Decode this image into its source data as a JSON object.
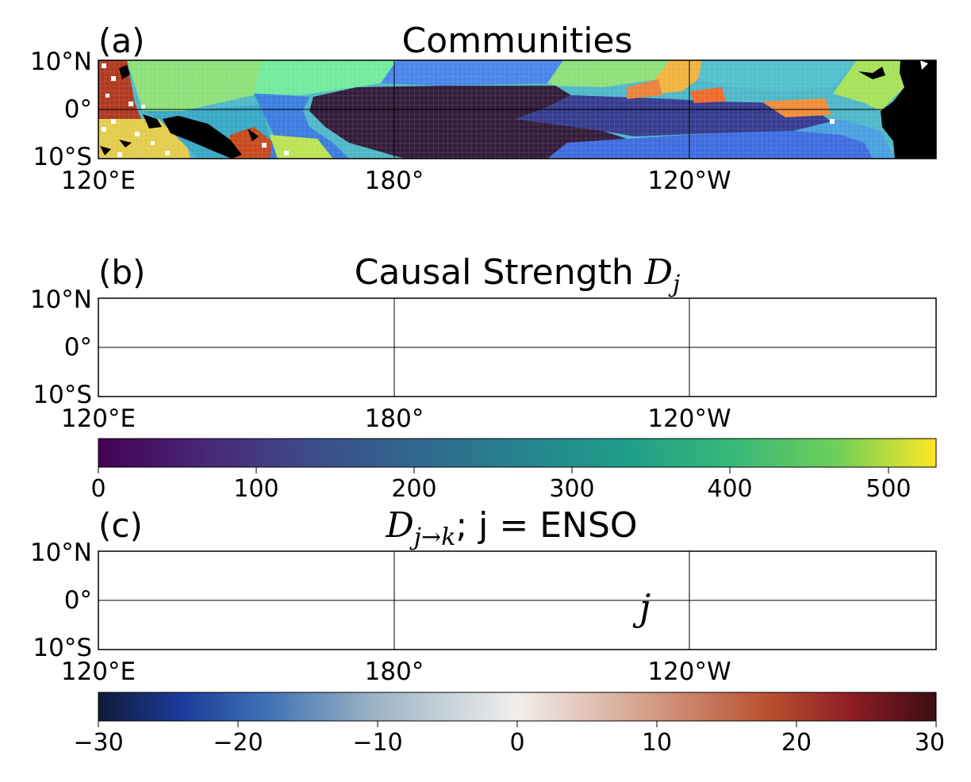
{
  "panels": [
    {
      "label": "(a)",
      "title": "Communities",
      "lat_ticks": [
        "10°N",
        "0°",
        "10°S"
      ],
      "lon_ticks": [
        "120°E",
        "180°",
        "120°W"
      ]
    },
    {
      "label": "(b)",
      "title_prefix": "Causal Strength ",
      "title_math": "D",
      "title_sub": "j",
      "lat_ticks": [
        "10°N",
        "0°",
        "10°S"
      ],
      "lon_ticks": [
        "120°E",
        "180°",
        "120°W"
      ],
      "colorbar": {
        "colormap": "viridis",
        "range": [
          0,
          530
        ],
        "ticks": [
          "0",
          "100",
          "200",
          "300",
          "400",
          "500"
        ]
      }
    },
    {
      "label": "(c)",
      "title_math": "D",
      "title_sub": "j→k",
      "title_suffix": "; j = ENSO",
      "lat_ticks": [
        "10°N",
        "0°",
        "10°S"
      ],
      "lon_ticks": [
        "120°E",
        "180°",
        "120°W"
      ],
      "annotation": "j",
      "colorbar": {
        "colormap": "diverging blue-white-red",
        "range": [
          -30,
          30
        ],
        "ticks": [
          "−30",
          "−20",
          "−10",
          "0",
          "10",
          "20",
          "30"
        ]
      }
    }
  ],
  "colors": {
    "land": "#000000",
    "enso_region_b": "#f7e14a",
    "enso_region_c": "#f2f0ee"
  }
}
